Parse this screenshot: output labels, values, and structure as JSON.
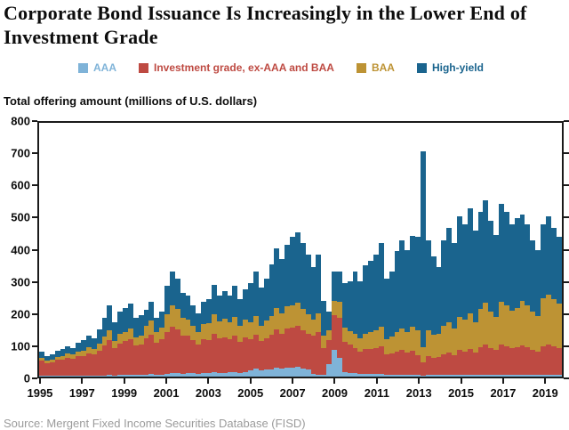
{
  "title": "Corporate Bond Issuance Is Increasingly in the Lower End of Investment Grade",
  "subtitle": "Total offering amount (millions of U.S. dollars)",
  "source": "Source: Mergent Fixed Income Securities Database (FISD)",
  "legend": [
    {
      "label": "AAA",
      "color": "#7FB3D8"
    },
    {
      "label": "Investment grade, ex-AAA and BAA",
      "color": "#BE4A42"
    },
    {
      "label": "BAA",
      "color": "#BD9334"
    },
    {
      "label": "High-yield",
      "color": "#1A648E"
    }
  ],
  "chart_data": {
    "type": "bar",
    "stacked": true,
    "title": "Corporate Bond Issuance Is Increasingly in the Lower End of Investment Grade",
    "ylabel": "Total offering amount (millions of U.S. dollars)",
    "xlabel": "",
    "grid": false,
    "legend_position": "top",
    "x_unit": "quarter",
    "x_start": "1995Q1",
    "x_end": "2019Q4",
    "x_tick_years": [
      1995,
      1997,
      1999,
      2001,
      2003,
      2005,
      2007,
      2009,
      2011,
      2013,
      2015,
      2017,
      2019
    ],
    "ylim": [
      0,
      800
    ],
    "y_ticks": [
      0,
      100,
      200,
      300,
      400,
      500,
      600,
      700,
      800
    ],
    "series": [
      {
        "name": "AAA",
        "color": "#7FB3D8",
        "values": [
          2,
          2,
          2,
          2,
          2,
          3,
          3,
          3,
          3,
          3,
          4,
          4,
          4,
          5,
          4,
          5,
          6,
          7,
          5,
          6,
          7,
          8,
          6,
          7,
          9,
          11,
          10,
          9,
          11,
          10,
          9,
          10,
          11,
          13,
          12,
          12,
          13,
          15,
          12,
          14,
          20,
          24,
          19,
          22,
          23,
          27,
          24,
          28,
          28,
          30,
          26,
          22,
          8,
          6,
          5,
          40,
          85,
          60,
          15,
          12,
          10,
          8,
          8,
          8,
          8,
          8,
          6,
          6,
          6,
          6,
          5,
          6,
          5,
          4,
          5,
          5,
          5,
          6,
          6,
          5,
          6,
          6,
          6,
          5,
          6,
          7,
          6,
          5,
          7,
          6,
          6,
          6,
          6,
          6,
          5,
          5,
          6,
          6,
          6,
          5
        ]
      },
      {
        "name": "Investment grade, ex-AAA and BAA",
        "color": "#BE4A42",
        "values": [
          48,
          40,
          42,
          50,
          52,
          56,
          54,
          62,
          62,
          70,
          66,
          78,
          95,
          110,
          85,
          100,
          105,
          112,
          92,
          96,
          115,
          125,
          100,
          110,
          130,
          145,
          138,
          120,
          118,
          105,
          92,
          108,
          105,
          122,
          108,
          112,
          105,
          115,
          98,
          110,
          98,
          108,
          92,
          100,
          108,
          122,
          112,
          125,
          126,
          130,
          120,
          112,
          120,
          135,
          85,
          75,
          110,
          125,
          95,
          90,
          80,
          72,
          78,
          80,
          82,
          88,
          65,
          68,
          72,
          78,
          70,
          76,
          62,
          40,
          60,
          55,
          58,
          65,
          70,
          62,
          78,
          74,
          80,
          70,
          88,
          95,
          85,
          78,
          95,
          90,
          85,
          88,
          92,
          88,
          80,
          75,
          90,
          95,
          90,
          85
        ]
      },
      {
        "name": "BAA",
        "color": "#BD9334",
        "values": [
          10,
          8,
          9,
          11,
          12,
          13,
          12,
          15,
          16,
          19,
          17,
          22,
          26,
          32,
          24,
          30,
          30,
          33,
          27,
          28,
          38,
          44,
          34,
          38,
          58,
          70,
          64,
          55,
          52,
          46,
          40,
          48,
          52,
          62,
          55,
          58,
          52,
          58,
          50,
          56,
          52,
          58,
          48,
          54,
          60,
          68,
          62,
          70,
          70,
          73,
          67,
          62,
          52,
          58,
          40,
          30,
          45,
          50,
          45,
          42,
          45,
          42,
          50,
          52,
          55,
          60,
          48,
          52,
          62,
          68,
          66,
          74,
          78,
          50,
          80,
          72,
          72,
          88,
          95,
          85,
          105,
          100,
          112,
          95,
          120,
          130,
          115,
          105,
          135,
          128,
          118,
          122,
          140,
          132,
          120,
          112,
          150,
          158,
          148,
          140
        ]
      },
      {
        "name": "High-yield",
        "color": "#1A648E",
        "values": [
          18,
          15,
          17,
          19,
          22,
          23,
          21,
          28,
          34,
          38,
          35,
          44,
          60,
          78,
          57,
          70,
          74,
          78,
          61,
          65,
          50,
          58,
          45,
          50,
          88,
          104,
          98,
          81,
          74,
          64,
          59,
          69,
          77,
          93,
          80,
          88,
          85,
          97,
          85,
          95,
          125,
          140,
          121,
          134,
          164,
          188,
          172,
          192,
          216,
          222,
          207,
          189,
          165,
          186,
          110,
          60,
          90,
          95,
          140,
          156,
          195,
          178,
          214,
          225,
          240,
          264,
          191,
          204,
          255,
          278,
          259,
          289,
          295,
          616,
          285,
          248,
          210,
          271,
          299,
          268,
          316,
          300,
          332,
          290,
          306,
          323,
          284,
          257,
          308,
          296,
          271,
          284,
          272,
          254,
          225,
          208,
          234,
          246,
          226,
          210
        ]
      }
    ]
  }
}
